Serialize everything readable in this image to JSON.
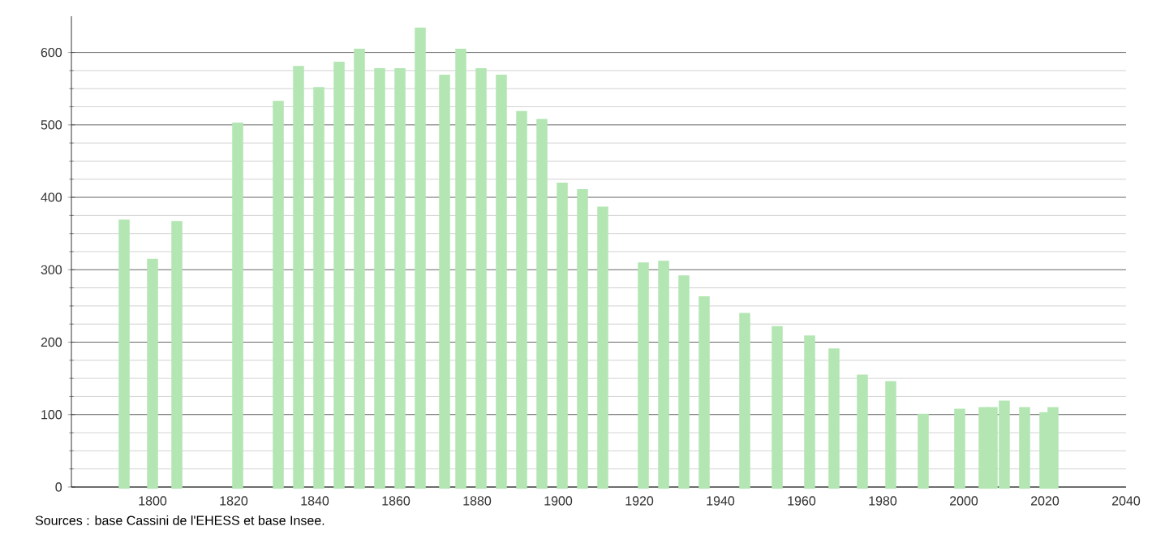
{
  "chart_data": {
    "type": "bar",
    "x": [
      1793,
      1800,
      1806,
      1821,
      1831,
      1836,
      1841,
      1846,
      1851,
      1856,
      1861,
      1866,
      1872,
      1876,
      1881,
      1886,
      1891,
      1896,
      1901,
      1906,
      1911,
      1921,
      1926,
      1931,
      1936,
      1946,
      1954,
      1962,
      1968,
      1975,
      1982,
      1990,
      1999,
      2005,
      2007,
      2010,
      2015,
      2020,
      2022
    ],
    "values": [
      367,
      313,
      365,
      501,
      531,
      579,
      550,
      585,
      603,
      576,
      576,
      632,
      567,
      603,
      576,
      567,
      517,
      506,
      418,
      409,
      385,
      308,
      310,
      290,
      261,
      238,
      220,
      207,
      189,
      153,
      144,
      99,
      106,
      108,
      108,
      117,
      108,
      101,
      108
    ],
    "color": "#b3e6b3",
    "xlim": [
      1780,
      2040
    ],
    "ylim": [
      0,
      650
    ],
    "xticks": [
      1800,
      1820,
      1840,
      1860,
      1880,
      1900,
      1920,
      1940,
      1960,
      1980,
      2000,
      2020,
      2040
    ],
    "yticks": [
      0,
      100,
      200,
      300,
      400,
      500,
      600
    ],
    "grid": "y",
    "annotations": [
      "Sources : base Cassini de l'EHESS et base Insee."
    ]
  }
}
